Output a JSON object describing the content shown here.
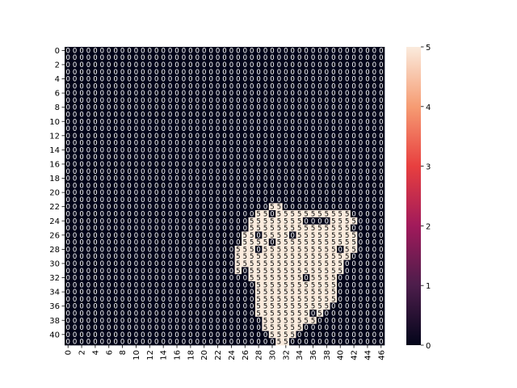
{
  "chart_data": {
    "type": "heatmap",
    "title": "",
    "xlabel": "",
    "ylabel": "",
    "rows": 42,
    "cols": 47,
    "xticks": [
      0,
      2,
      4,
      6,
      8,
      10,
      12,
      14,
      16,
      18,
      20,
      22,
      24,
      26,
      28,
      30,
      32,
      34,
      36,
      38,
      40,
      42,
      44,
      46
    ],
    "yticks": [
      0,
      2,
      4,
      6,
      8,
      10,
      12,
      14,
      16,
      18,
      20,
      22,
      24,
      26,
      28,
      30,
      32,
      34,
      36,
      38,
      40
    ],
    "colorbar": {
      "range": [
        0,
        5
      ],
      "ticks": [
        0,
        1,
        2,
        3,
        4,
        5
      ]
    },
    "colormap_stops": [
      "#03051a",
      "#4c1d4b",
      "#a11a5b",
      "#e83f3f",
      "#f69c73",
      "#faebdd"
    ],
    "annotated": true,
    "cell_value_in_region": 5,
    "cell_value_elsewhere": 0,
    "region_of_value_5": {
      "22": [
        [
          30,
          31
        ]
      ],
      "23": [
        [
          28,
          41
        ]
      ],
      "24": [
        [
          27,
          42
        ]
      ],
      "25": [
        [
          27,
          42
        ]
      ],
      "26": [
        [
          26,
          42
        ]
      ],
      "27": [
        [
          26,
          42
        ]
      ],
      "28": [
        [
          25,
          42
        ]
      ],
      "29": [
        [
          25,
          41
        ]
      ],
      "30": [
        [
          25,
          40
        ]
      ],
      "31": [
        [
          25,
          40
        ]
      ],
      "32": [
        [
          27,
          39
        ]
      ],
      "33": [
        [
          28,
          39
        ]
      ],
      "34": [
        [
          28,
          39
        ]
      ],
      "35": [
        [
          28,
          39
        ]
      ],
      "36": [
        [
          28,
          38
        ]
      ],
      "37": [
        [
          28,
          37
        ]
      ],
      "38": [
        [
          29,
          36
        ]
      ],
      "39": [
        [
          29,
          34
        ]
      ],
      "40": [
        [
          30,
          33
        ]
      ],
      "41": [
        [
          31,
          32
        ]
      ]
    },
    "zero_cells_inside_region": [
      [
        23,
        30
      ],
      [
        24,
        35
      ],
      [
        24,
        36
      ],
      [
        24,
        37
      ],
      [
        24,
        38
      ],
      [
        25,
        42
      ],
      [
        26,
        28
      ],
      [
        26,
        33
      ],
      [
        27,
        30
      ],
      [
        28,
        28
      ],
      [
        28,
        40
      ],
      [
        31,
        26
      ],
      [
        32,
        35
      ],
      [
        37,
        36
      ]
    ]
  }
}
